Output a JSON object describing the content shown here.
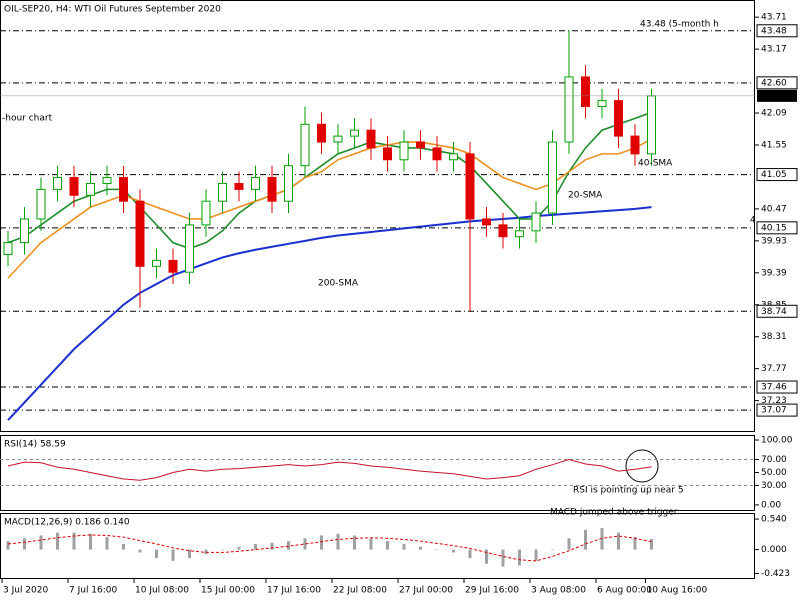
{
  "chart_data": [
    {
      "type": "candlestick",
      "header": "OIL-SEP20, H4:  WTI Oil Futures September 2020",
      "annotations": [
        {
          "text": "43.48 (5-month h",
          "color": "#e00000"
        },
        {
          "text": "-hour chart",
          "color": "#000000"
        },
        {
          "text": "4",
          "color": "#2e7d32"
        }
      ],
      "categories": [
        "3 Jul 2020",
        null,
        null,
        null,
        "7 Jul 16:00",
        null,
        null,
        null,
        "10 Jul 08:00",
        null,
        null,
        null,
        "15 Jul 00:00",
        null,
        null,
        null,
        "17 Jul 16:00",
        null,
        null,
        null,
        "22 Jul 08:00",
        null,
        null,
        null,
        "27 Jul 00:00",
        null,
        null,
        null,
        "29 Jul 16:00",
        null,
        null,
        null,
        "3 Aug 08:00",
        null,
        null,
        null,
        "6 Aug 00:00",
        null,
        null,
        "10 Aug 16:00"
      ],
      "open": [
        39.7,
        39.9,
        40.3,
        40.8,
        41.0,
        40.7,
        40.9,
        41.0,
        40.6,
        39.5,
        39.6,
        39.4,
        40.2,
        40.6,
        40.9,
        40.8,
        41.0,
        40.6,
        41.2,
        41.9,
        41.6,
        41.7,
        41.8,
        41.5,
        41.3,
        41.6,
        41.5,
        41.3,
        41.4,
        40.3,
        40.2,
        40.0,
        40.1,
        40.4,
        41.6,
        42.7,
        42.2,
        42.3,
        41.7,
        41.4
      ],
      "high": [
        40.1,
        40.5,
        41.0,
        41.2,
        41.2,
        41.1,
        41.2,
        41.2,
        40.8,
        39.8,
        39.8,
        40.4,
        40.8,
        41.1,
        41.1,
        41.2,
        41.2,
        41.4,
        42.2,
        42.1,
        41.9,
        42.0,
        42.0,
        41.7,
        41.8,
        41.8,
        41.7,
        41.6,
        41.6,
        40.5,
        40.4,
        40.3,
        40.6,
        41.8,
        43.48,
        42.9,
        42.5,
        42.5,
        41.9,
        42.5
      ],
      "low": [
        39.5,
        39.7,
        40.1,
        40.6,
        40.5,
        40.5,
        40.7,
        40.4,
        38.8,
        39.3,
        39.2,
        39.2,
        40.0,
        40.4,
        40.6,
        40.6,
        40.4,
        40.4,
        41.0,
        41.4,
        41.4,
        41.5,
        41.3,
        41.1,
        41.1,
        41.3,
        41.1,
        41.1,
        38.74,
        40.0,
        39.8,
        39.8,
        39.9,
        40.2,
        41.4,
        42.0,
        42.0,
        41.5,
        41.2,
        41.2
      ],
      "close": [
        39.9,
        40.3,
        40.8,
        41.0,
        40.7,
        40.9,
        41.0,
        40.6,
        39.5,
        39.6,
        39.4,
        40.2,
        40.6,
        40.9,
        40.8,
        41.0,
        40.6,
        41.2,
        41.9,
        41.6,
        41.7,
        41.8,
        41.5,
        41.3,
        41.6,
        41.5,
        41.3,
        41.4,
        40.3,
        40.2,
        40.0,
        40.1,
        40.4,
        41.6,
        42.7,
        42.2,
        42.3,
        41.7,
        41.4,
        42.38
      ],
      "up_color": "#00a000",
      "down_color": "#e00000",
      "series": [
        {
          "name": "200-SMA",
          "color": "#1a2fd0",
          "values": [
            36.9,
            37.2,
            37.5,
            37.8,
            38.1,
            38.35,
            38.6,
            38.85,
            39.05,
            39.2,
            39.35,
            39.45,
            39.55,
            39.65,
            39.72,
            39.78,
            39.83,
            39.88,
            39.93,
            39.98,
            40.02,
            40.05,
            40.08,
            40.11,
            40.14,
            40.17,
            40.2,
            40.23,
            40.26,
            40.28,
            40.3,
            40.32,
            40.35,
            40.37,
            40.39,
            40.41,
            40.43,
            40.45,
            40.47,
            40.5
          ]
        },
        {
          "name": "20-SMA",
          "color": "#1e8c2a",
          "values": [
            39.9,
            40.0,
            40.2,
            40.4,
            40.6,
            40.7,
            40.8,
            40.8,
            40.5,
            40.2,
            39.9,
            39.8,
            39.9,
            40.1,
            40.4,
            40.6,
            40.7,
            40.8,
            41.0,
            41.2,
            41.4,
            41.5,
            41.6,
            41.55,
            41.5,
            41.5,
            41.45,
            41.4,
            41.2,
            40.9,
            40.6,
            40.3,
            40.3,
            40.6,
            41.1,
            41.5,
            41.8,
            41.9,
            42.0,
            42.1
          ]
        },
        {
          "name": "40-SMA",
          "color": "#f0901e",
          "values": [
            39.3,
            39.6,
            39.9,
            40.1,
            40.3,
            40.5,
            40.6,
            40.7,
            40.6,
            40.5,
            40.4,
            40.3,
            40.3,
            40.4,
            40.5,
            40.6,
            40.7,
            40.8,
            41.0,
            41.1,
            41.3,
            41.4,
            41.5,
            41.55,
            41.6,
            41.6,
            41.55,
            41.5,
            41.4,
            41.2,
            41.0,
            40.9,
            40.8,
            40.9,
            41.1,
            41.3,
            41.4,
            41.4,
            41.5,
            41.65
          ]
        }
      ],
      "ylim": [
        36.7,
        44.0
      ],
      "yticks": [
        43.71,
        43.17,
        42.09,
        41.55,
        40.47,
        39.93,
        39.39,
        38.85,
        38.31,
        37.77,
        37.23
      ],
      "levels": [
        43.48,
        {
          "value": 42.6,
          "label": "42.60"
        },
        41.05,
        40.15,
        38.74,
        37.46,
        37.07
      ],
      "current": 42.38
    },
    {
      "type": "line",
      "header": "RSI(14) 58.59",
      "annotations": [
        {
          "text": "RSI is pointing up near 5",
          "color": "#000000"
        }
      ],
      "series": [
        {
          "name": "RSI(14)",
          "color": "#c8102e",
          "values": [
            60,
            66,
            65,
            58,
            55,
            50,
            45,
            40,
            38,
            42,
            50,
            55,
            52,
            55,
            56,
            58,
            60,
            62,
            60,
            62,
            66,
            64,
            60,
            58,
            55,
            52,
            50,
            48,
            44,
            40,
            42,
            45,
            55,
            62,
            70,
            63,
            60,
            52,
            55,
            58.59
          ]
        }
      ],
      "ylim": [
        -9.4,
        106.2
      ],
      "yticks": [
        {
          "value": 100,
          "label": "100.00"
        },
        {
          "value": 70,
          "label": "70.00"
        },
        {
          "value": 50,
          "label": "50.00"
        },
        {
          "value": 30,
          "label": "30.00"
        },
        {
          "value": 0,
          "label": "0.00"
        }
      ],
      "levels": [
        70,
        30
      ]
    },
    {
      "type": "histogram",
      "header": "MACD(12,26,9) 0.186 0.140",
      "annotations": [
        {
          "text": "MACD jumped above trigger",
          "color": "#000000"
        }
      ],
      "values": [
        0.15,
        0.2,
        0.25,
        0.3,
        0.3,
        0.28,
        0.22,
        0.1,
        -0.05,
        -0.15,
        -0.2,
        -0.15,
        -0.08,
        0.0,
        0.05,
        0.1,
        0.12,
        0.15,
        0.2,
        0.25,
        0.28,
        0.25,
        0.2,
        0.15,
        0.1,
        0.05,
        0.0,
        -0.05,
        -0.15,
        -0.25,
        -0.3,
        -0.28,
        -0.2,
        0.0,
        0.2,
        0.35,
        0.38,
        0.3,
        0.22,
        0.186
      ],
      "color": "#a0a0a0",
      "signal": {
        "color": "#e00000",
        "values": [
          0.1,
          0.13,
          0.17,
          0.21,
          0.24,
          0.26,
          0.25,
          0.22,
          0.16,
          0.1,
          0.03,
          -0.02,
          -0.05,
          -0.05,
          -0.03,
          0.0,
          0.03,
          0.06,
          0.1,
          0.14,
          0.18,
          0.2,
          0.21,
          0.2,
          0.18,
          0.15,
          0.11,
          0.07,
          0.02,
          -0.05,
          -0.12,
          -0.18,
          -0.2,
          -0.12,
          -0.02,
          0.1,
          0.2,
          0.24,
          0.2,
          0.14
        ]
      },
      "ylim": [
        -0.52,
        0.63
      ],
      "yticks": [
        {
          "value": 0.54,
          "label": "0.540"
        },
        {
          "value": 0,
          "label": "0.000"
        },
        -0.423
      ]
    }
  ]
}
